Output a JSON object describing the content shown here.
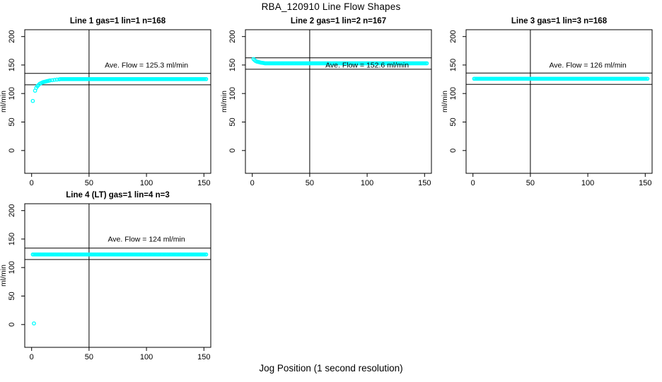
{
  "page": {
    "title": "RBA_120910  Line Flow Shapes",
    "xlabel_bottom": "Jog Position (1 second resolution)"
  },
  "colors": {
    "points": "#00ffff",
    "axis": "#000000",
    "text": "#000000",
    "background": "#ffffff"
  },
  "chart_data": [
    {
      "type": "scatter",
      "title": "Line 1 gas=1 lin=1 n=168",
      "params": {
        "line": "1",
        "gas": 1,
        "lin": 1,
        "n": 168
      },
      "annotation": "Ave. Flow =  125.3  ml/min",
      "ave_flow_ml_min": 125.3,
      "ylabel": "ml/min",
      "xticks": [
        0,
        50,
        100,
        150
      ],
      "yticks": [
        0,
        50,
        100,
        150,
        200
      ],
      "xlim": [
        -6,
        156
      ],
      "ylim": [
        -40,
        212
      ],
      "vline_x": 50,
      "hlines": [
        135.3,
        115.3
      ],
      "annotation_pos": [
        100,
        150
      ],
      "transient_points": [
        [
          1,
          87
        ],
        [
          3,
          105
        ],
        [
          4,
          110
        ],
        [
          5,
          113
        ],
        [
          6,
          115
        ],
        [
          7,
          117
        ],
        [
          8,
          118
        ],
        [
          9,
          119
        ],
        [
          10,
          120
        ],
        [
          11,
          120.5
        ],
        [
          12,
          121
        ],
        [
          13,
          121.5
        ],
        [
          14,
          122
        ],
        [
          15,
          122.5
        ],
        [
          16,
          123
        ],
        [
          18,
          123.5
        ],
        [
          20,
          124
        ],
        [
          22,
          124.5
        ],
        [
          24,
          124.8
        ]
      ],
      "steady": {
        "x_start": 25,
        "x_end": 152,
        "y": 125.3
      }
    },
    {
      "type": "scatter",
      "title": "Line 2 gas=1 lin=2 n=167",
      "params": {
        "line": "2",
        "gas": 1,
        "lin": 2,
        "n": 167
      },
      "annotation": "Ave. Flow =  152.6  ml/min",
      "ave_flow_ml_min": 152.6,
      "ylabel": "ml/min",
      "xticks": [
        0,
        50,
        100,
        150
      ],
      "yticks": [
        0,
        50,
        100,
        150,
        200
      ],
      "xlim": [
        -6,
        156
      ],
      "ylim": [
        -40,
        212
      ],
      "vline_x": 50,
      "hlines": [
        162.6,
        142.6
      ],
      "annotation_pos": [
        100,
        150
      ],
      "transient_points": [
        [
          1,
          160.5
        ],
        [
          2,
          158.5
        ],
        [
          3,
          157
        ],
        [
          4,
          156
        ],
        [
          5,
          155.5
        ],
        [
          6,
          155
        ],
        [
          7,
          154.5
        ],
        [
          8,
          154
        ],
        [
          9,
          153.8
        ],
        [
          10,
          153.5
        ]
      ],
      "steady": {
        "x_start": 11,
        "x_end": 152,
        "y": 153
      }
    },
    {
      "type": "scatter",
      "title": "Line 3 gas=1 lin=3 n=168",
      "params": {
        "line": "3",
        "gas": 1,
        "lin": 3,
        "n": 168
      },
      "annotation": "Ave. Flow =  126  ml/min",
      "ave_flow_ml_min": 126,
      "ylabel": "ml/min",
      "xticks": [
        0,
        50,
        100,
        150
      ],
      "yticks": [
        0,
        50,
        100,
        150,
        200
      ],
      "xlim": [
        -6,
        156
      ],
      "ylim": [
        -40,
        212
      ],
      "vline_x": 50,
      "hlines": [
        136,
        116
      ],
      "annotation_pos": [
        100,
        150
      ],
      "transient_points": [],
      "steady": {
        "x_start": 1,
        "x_end": 152,
        "y": 126
      }
    },
    {
      "type": "scatter",
      "title": "Line 4 (LT) gas=1 lin=4 n=3",
      "params": {
        "line": "4 (LT)",
        "gas": 1,
        "lin": 4,
        "n": 3
      },
      "annotation": "Ave. Flow =  124  ml/min",
      "ave_flow_ml_min": 124,
      "ylabel": "ml/min",
      "xticks": [
        0,
        50,
        100,
        150
      ],
      "yticks": [
        0,
        50,
        100,
        150,
        200
      ],
      "xlim": [
        -6,
        156
      ],
      "ylim": [
        -40,
        212
      ],
      "vline_x": 50,
      "hlines": [
        134,
        114
      ],
      "annotation_pos": [
        100,
        150
      ],
      "transient_points": [
        [
          2,
          2
        ]
      ],
      "steady": {
        "x_start": 1,
        "x_end": 152,
        "y": 123
      }
    }
  ]
}
